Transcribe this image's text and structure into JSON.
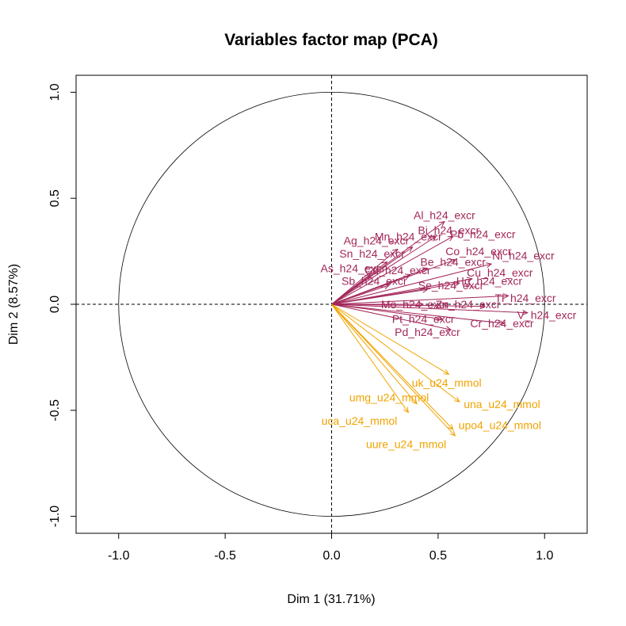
{
  "chart_data": {
    "type": "scatter",
    "title": "Variables factor map (PCA)",
    "xlabel": "Dim 1 (31.71%)",
    "ylabel": "Dim 2 (8.57%)",
    "xlim": [
      -1.2,
      1.2
    ],
    "ylim": [
      -1.08,
      1.08
    ],
    "xticks": [
      -1.0,
      -0.5,
      0.0,
      0.5,
      1.0
    ],
    "yticks": [
      -1.0,
      -0.5,
      0.0,
      0.5,
      1.0
    ],
    "xtick_labels": [
      "-1.0",
      "-0.5",
      "0.0",
      "0.5",
      "1.0"
    ],
    "ytick_labels": [
      "-1.0",
      "-0.5",
      "0.0",
      "0.5",
      "1.0"
    ],
    "unit_circle": true,
    "reference_lines": [
      0,
      0
    ],
    "colors": {
      "excretion": "#a3275a",
      "urine": "#f0a300"
    },
    "series": [
      {
        "group": "excretion",
        "color": "#a3275a",
        "points": [
          {
            "label": "Al_h24_excr",
            "x": 0.53,
            "y": 0.39,
            "lx": 0.53,
            "ly": 0.42
          },
          {
            "label": "Bi_h24_excr",
            "x": 0.49,
            "y": 0.32,
            "lx": 0.55,
            "ly": 0.35
          },
          {
            "label": "Pb_h24_excr",
            "x": 0.57,
            "y": 0.32,
            "lx": 0.71,
            "ly": 0.33
          },
          {
            "label": "Mn_h24_excr",
            "x": 0.38,
            "y": 0.27,
            "lx": 0.36,
            "ly": 0.32
          },
          {
            "label": "Ag_h24_excr",
            "x": 0.31,
            "y": 0.26,
            "lx": 0.21,
            "ly": 0.3
          },
          {
            "label": "Co_h24_excr",
            "x": 0.58,
            "y": 0.21,
            "lx": 0.69,
            "ly": 0.25
          },
          {
            "label": "Sn_h24_excr",
            "x": 0.26,
            "y": 0.2,
            "lx": 0.19,
            "ly": 0.24
          },
          {
            "label": "Ni_h24_excr",
            "x": 0.75,
            "y": 0.19,
            "lx": 0.9,
            "ly": 0.23
          },
          {
            "label": "Be_h24_excr",
            "x": 0.45,
            "y": 0.17,
            "lx": 0.57,
            "ly": 0.2
          },
          {
            "label": "As_h24_excr",
            "x": 0.18,
            "y": 0.14,
            "lx": 0.1,
            "ly": 0.17
          },
          {
            "label": "Cd_h24_excr",
            "x": 0.37,
            "y": 0.14,
            "lx": 0.31,
            "ly": 0.16
          },
          {
            "label": "Cu_h24_excr",
            "x": 0.66,
            "y": 0.12,
            "lx": 0.79,
            "ly": 0.15
          },
          {
            "label": "Sb_h24_excr",
            "x": 0.27,
            "y": 0.09,
            "lx": 0.2,
            "ly": 0.11
          },
          {
            "label": "Hg_h24_excr",
            "x": 0.6,
            "y": 0.1,
            "lx": 0.74,
            "ly": 0.11
          },
          {
            "label": "Se_h24_excr",
            "x": 0.45,
            "y": 0.07,
            "lx": 0.56,
            "ly": 0.09
          },
          {
            "label": "Tl_h24_excr",
            "x": 0.83,
            "y": 0.04,
            "lx": 0.91,
            "ly": 0.03
          },
          {
            "label": "Mo_h24_excr",
            "x": 0.43,
            "y": 0.0,
            "lx": 0.39,
            "ly": 0.0
          },
          {
            "label": "Zn_h24_excr",
            "x": 0.72,
            "y": -0.01,
            "lx": 0.64,
            "ly": 0.0
          },
          {
            "label": "V_h24_excr",
            "x": 0.92,
            "y": -0.04,
            "lx": 1.01,
            "ly": -0.05
          },
          {
            "label": "Pt_h24_excr",
            "x": 0.52,
            "y": -0.07,
            "lx": 0.43,
            "ly": -0.07
          },
          {
            "label": "Cr_h24_excr",
            "x": 0.81,
            "y": -0.09,
            "lx": 0.8,
            "ly": -0.09
          },
          {
            "label": "Pd_h24_excr",
            "x": 0.56,
            "y": -0.12,
            "lx": 0.45,
            "ly": -0.13
          }
        ]
      },
      {
        "group": "urine",
        "color": "#f0a300",
        "points": [
          {
            "label": "uk_u24_mmol",
            "x": 0.55,
            "y": -0.33,
            "lx": 0.54,
            "ly": -0.37
          },
          {
            "label": "umg_u24_mmol",
            "x": 0.4,
            "y": -0.47,
            "lx": 0.27,
            "ly": -0.44
          },
          {
            "label": "una_u24_mmol",
            "x": 0.6,
            "y": -0.46,
            "lx": 0.8,
            "ly": -0.47
          },
          {
            "label": "uca_u24_mmol",
            "x": 0.36,
            "y": -0.51,
            "lx": 0.13,
            "ly": -0.55
          },
          {
            "label": "upo4_u24_mmol",
            "x": 0.57,
            "y": -0.59,
            "lx": 0.79,
            "ly": -0.57
          },
          {
            "label": "uure_u24_mmol",
            "x": 0.58,
            "y": -0.62,
            "lx": 0.35,
            "ly": -0.66
          }
        ]
      }
    ]
  }
}
